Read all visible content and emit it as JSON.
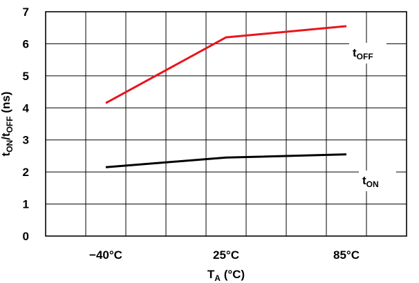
{
  "chart_data": {
    "type": "line",
    "title": "",
    "categories": [
      "−40°C",
      "25°C",
      "85°C"
    ],
    "x": [
      -40,
      25,
      85
    ],
    "ylim": [
      0,
      7
    ],
    "yticks": [
      0,
      1,
      2,
      3,
      4,
      5,
      6,
      7
    ],
    "xlabel": {
      "main": "T",
      "sub": "A",
      "rest": " (°C)"
    },
    "ylabel": {
      "p1": "t",
      "s1": "ON",
      "p2": "/t",
      "s2": "OFF",
      "p3": " (ns)"
    },
    "grid": true,
    "series": [
      {
        "label_main": "t",
        "label_sub": "OFF",
        "color": "#e8141c",
        "values": [
          4.15,
          6.2,
          6.55
        ]
      },
      {
        "label_main": "t",
        "label_sub": "ON",
        "color": "#000000",
        "values": [
          2.15,
          2.45,
          2.55
        ]
      }
    ]
  }
}
